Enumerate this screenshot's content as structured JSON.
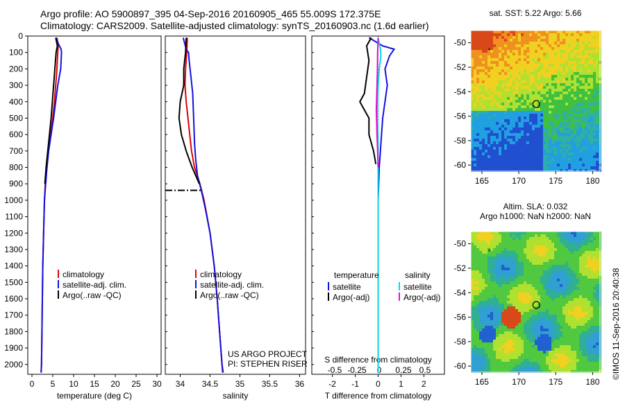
{
  "header": {
    "line1": "Argo profile: AO 5900897_395 04-Sep-2016 20160905_465 55.009S 172.375E",
    "line2": "Climatology: CARS2009. Satellite-adjusted climatology: synTS_20160903.nc (1.6d earlier)"
  },
  "depth_ticks": [
    0,
    100,
    200,
    300,
    400,
    500,
    600,
    700,
    800,
    900,
    1000,
    1100,
    1200,
    1300,
    1400,
    1500,
    1600,
    1700,
    1800,
    1900,
    2000
  ],
  "colors": {
    "climatology": "#e00000",
    "satellite": "#1010e0",
    "argo": "#000000",
    "cyan": "#00d8e8",
    "magenta": "#e010d0"
  },
  "chart_data": [
    {
      "id": "temperature",
      "type": "line",
      "xlabel": "temperature (deg C)",
      "xlim": [
        -1,
        31
      ],
      "ylim": [
        2060,
        0
      ],
      "xticks": [
        0,
        5,
        10,
        15,
        20,
        25,
        30
      ],
      "legend": [
        "climatology",
        "satellite-adj. clim.",
        "Argo(..raw -QC)"
      ],
      "series": [
        {
          "key": "climatology",
          "color": "#e00000",
          "points": [
            [
              6,
              10
            ],
            [
              6.3,
              60
            ],
            [
              6.2,
              100
            ],
            [
              6,
              200
            ],
            [
              5.7,
              300
            ],
            [
              5.4,
              400
            ],
            [
              5,
              500
            ],
            [
              4.5,
              600
            ],
            [
              4,
              700
            ],
            [
              3.6,
              800
            ],
            [
              3.2,
              900
            ],
            [
              3,
              1000
            ],
            [
              2.8,
              1200
            ],
            [
              2.6,
              1400
            ],
            [
              2.5,
              1600
            ],
            [
              2.4,
              1800
            ],
            [
              2.3,
              2000
            ],
            [
              2.2,
              2050
            ]
          ]
        },
        {
          "key": "satellite",
          "color": "#1010e0",
          "points": [
            [
              5.8,
              10
            ],
            [
              6.4,
              50
            ],
            [
              7,
              80
            ],
            [
              7.1,
              100
            ],
            [
              6.9,
              200
            ],
            [
              6.2,
              300
            ],
            [
              5.7,
              400
            ],
            [
              5.2,
              500
            ],
            [
              4.6,
              600
            ],
            [
              4,
              700
            ],
            [
              3.6,
              800
            ],
            [
              3.3,
              900
            ],
            [
              3,
              1000
            ],
            [
              2.8,
              1200
            ],
            [
              2.6,
              1400
            ],
            [
              2.5,
              1600
            ],
            [
              2.4,
              1800
            ],
            [
              2.3,
              2000
            ],
            [
              2.2,
              2050
            ]
          ]
        },
        {
          "key": "argo",
          "color": "#000000",
          "points": [
            [
              5.7,
              10
            ],
            [
              6.1,
              60
            ],
            [
              5.8,
              100
            ],
            [
              5.5,
              200
            ],
            [
              5.2,
              300
            ],
            [
              4.9,
              400
            ],
            [
              4.6,
              500
            ],
            [
              4.2,
              600
            ],
            [
              3.8,
              700
            ],
            [
              3.4,
              800
            ],
            [
              3.1,
              900
            ]
          ]
        }
      ]
    },
    {
      "id": "salinity",
      "type": "line",
      "xlabel": "salinity",
      "xlim": [
        33.75,
        36.1
      ],
      "ylim": [
        2060,
        0
      ],
      "xticks": [
        34,
        34.5,
        35,
        35.5,
        36
      ],
      "xticklabels": [
        "34",
        "34.5",
        "35",
        "35.5",
        "36"
      ],
      "legend": [
        "climatology",
        "satellite-adj. clim.",
        "Argo(..raw -QC)"
      ],
      "series": [
        {
          "key": "climatology",
          "color": "#e00000",
          "points": [
            [
              34.12,
              10
            ],
            [
              34.11,
              100
            ],
            [
              34.09,
              200
            ],
            [
              34.08,
              300
            ],
            [
              34.1,
              400
            ],
            [
              34.13,
              500
            ],
            [
              34.16,
              600
            ],
            [
              34.19,
              700
            ],
            [
              34.24,
              800
            ],
            [
              34.33,
              900
            ],
            [
              34.4,
              1000
            ],
            [
              34.5,
              1200
            ],
            [
              34.57,
              1400
            ],
            [
              34.62,
              1600
            ],
            [
              34.66,
              1800
            ],
            [
              34.7,
              2000
            ],
            [
              34.71,
              2050
            ]
          ]
        },
        {
          "key": "satellite",
          "color": "#1010e0",
          "points": [
            [
              34.05,
              10
            ],
            [
              34.1,
              80
            ],
            [
              34.14,
              100
            ],
            [
              34.15,
              150
            ],
            [
              34.18,
              250
            ],
            [
              34.21,
              350
            ],
            [
              34.22,
              450
            ],
            [
              34.23,
              550
            ],
            [
              34.24,
              650
            ],
            [
              34.26,
              750
            ],
            [
              34.29,
              850
            ],
            [
              34.36,
              950
            ],
            [
              34.42,
              1050
            ],
            [
              34.5,
              1200
            ],
            [
              34.57,
              1400
            ],
            [
              34.62,
              1600
            ],
            [
              34.66,
              1800
            ],
            [
              34.7,
              2000
            ],
            [
              34.72,
              2050
            ]
          ]
        },
        {
          "key": "argo",
          "color": "#000000",
          "points": [
            [
              34.1,
              10
            ],
            [
              34.09,
              100
            ],
            [
              34.06,
              200
            ],
            [
              34.06,
              300
            ],
            [
              34.0,
              400
            ],
            [
              33.98,
              500
            ],
            [
              34.02,
              600
            ],
            [
              34.1,
              700
            ],
            [
              34.2,
              800
            ],
            [
              34.32,
              900
            ]
          ]
        }
      ],
      "qc_marker": {
        "depth": 940,
        "x_from": 33.75,
        "x_to": 34.38
      }
    },
    {
      "id": "difference",
      "type": "line",
      "xlabel": "T difference from climatology",
      "top_xlabel": "S difference from climatology",
      "xlim": [
        -2.9,
        2.9
      ],
      "ylim": [
        2060,
        0
      ],
      "xticks": [
        -2,
        -1,
        0,
        1,
        2
      ],
      "top_xticks": [
        -0.5,
        -0.25,
        0,
        0.25,
        0.5
      ],
      "top_xticklabels": [
        "-0.5",
        "-0.25",
        "0",
        "0.25",
        "0.5"
      ],
      "legend_titles": [
        "temperature",
        "salinity"
      ],
      "legend": [
        "satellite",
        "Argo(-adj)",
        "satellite",
        "Argo(-adj)"
      ],
      "series": [
        {
          "key": "t_satellite",
          "color": "#1010e0",
          "points": [
            [
              -0.4,
              10
            ],
            [
              0.2,
              60
            ],
            [
              0.7,
              80
            ],
            [
              0.5,
              120
            ],
            [
              0.3,
              200
            ],
            [
              0.4,
              300
            ],
            [
              0.3,
              400
            ],
            [
              0.2,
              500
            ],
            [
              0.15,
              600
            ],
            [
              0.1,
              700
            ],
            [
              0.05,
              800
            ],
            [
              0,
              1000
            ],
            [
              0,
              1500
            ],
            [
              0,
              2050
            ]
          ]
        },
        {
          "key": "t_argo",
          "color": "#000000",
          "points": [
            [
              -0.3,
              10
            ],
            [
              -0.5,
              60
            ],
            [
              -0.4,
              150
            ],
            [
              -0.5,
              250
            ],
            [
              -0.6,
              350
            ],
            [
              -0.8,
              400
            ],
            [
              -0.6,
              450
            ],
            [
              -0.4,
              500
            ],
            [
              -0.4,
              600
            ],
            [
              -0.2,
              700
            ],
            [
              -0.1,
              780
            ]
          ]
        },
        {
          "key": "s_satellite",
          "color": "#00d8e8",
          "points": [
            [
              0,
              10
            ],
            [
              0.1,
              80
            ],
            [
              0.12,
              120
            ],
            [
              0.05,
              200
            ],
            [
              0,
              300
            ],
            [
              -0.02,
              400
            ],
            [
              -0.03,
              500
            ],
            [
              -0.01,
              600
            ],
            [
              0,
              700
            ],
            [
              0,
              1000
            ],
            [
              0,
              2050
            ]
          ]
        },
        {
          "key": "s_argo",
          "color": "#e010d0",
          "points": [
            [
              0,
              10
            ],
            [
              -0.02,
              100
            ],
            [
              -0.03,
              200
            ],
            [
              -0.05,
              300
            ],
            [
              -0.08,
              450
            ],
            [
              -0.05,
              600
            ],
            [
              -0.02,
              700
            ],
            [
              0,
              800
            ]
          ]
        }
      ]
    },
    {
      "id": "sst_map",
      "type": "heatmap",
      "title": "sat. SST: 5.22  Argo: 5.66",
      "xlim": [
        163.5,
        181
      ],
      "ylim": [
        -60.5,
        -49
      ],
      "xticks": [
        165,
        170,
        175,
        180
      ],
      "yticks": [
        -50,
        -52,
        -54,
        -56,
        -58,
        -60
      ],
      "float_lon": 172.375,
      "float_lat": -55.009
    },
    {
      "id": "sla_map",
      "type": "heatmap",
      "title_line1": "Altim. SLA: 0.032",
      "title_line2": "Argo h1000: NaN h2000: NaN",
      "xlim": [
        163.5,
        181
      ],
      "ylim": [
        -60.5,
        -49
      ],
      "xticks": [
        165,
        170,
        175,
        180
      ],
      "yticks": [
        -50,
        -52,
        -54,
        -56,
        -58,
        -60
      ],
      "float_lon": 172.375,
      "float_lat": -55.009
    }
  ],
  "credits": {
    "line1": "US ARGO PROJECT",
    "line2": "PI: STEPHEN RISER"
  },
  "watermark": "©IMOS 11-Sep-2016 20:40:38"
}
